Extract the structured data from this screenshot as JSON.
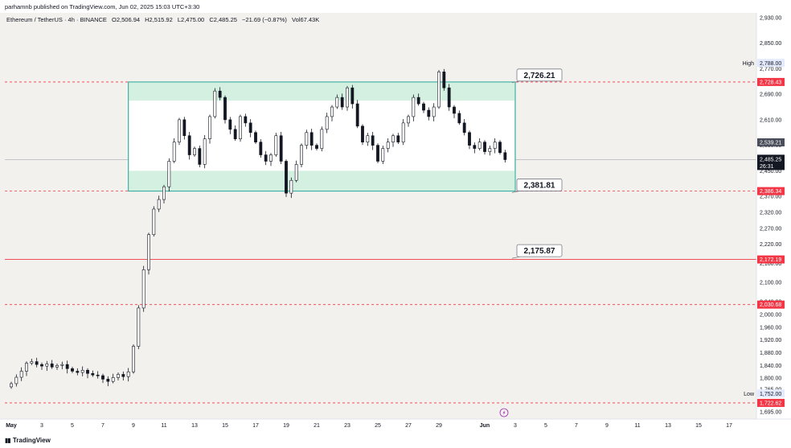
{
  "header": {
    "publisher_line": "parhamnb published on TradingView.com, Jun 02, 2025 15:03 UTC+3:30"
  },
  "legend": {
    "symbol": "Ethereum / TetherUS · 4h · BINANCE",
    "open": "O2,506.94",
    "high": "H2,515.92",
    "low": "L2,475.00",
    "close": "C2,485.25",
    "change": "−21.69 (−0.87%)",
    "volume": "Vol67.43K"
  },
  "footer": {
    "brand": "TradingView"
  },
  "colors": {
    "background": "#f3f1ed",
    "range_box_fill": "#d3f0e0",
    "range_box_border": "#26a69a",
    "dashed_red": "#f23645",
    "candle": "#131722",
    "current_price_tag": "#131722",
    "gray_tag": "#4a4e5a"
  },
  "chart_data": {
    "type": "candlestick",
    "symbol": "ETH/USDT",
    "timeframe": "4h",
    "ylim": [
      1672,
      2945
    ],
    "ytick_labels": [
      "2,930.00",
      "2,850.00",
      "2,770.00",
      "2,690.00",
      "2,610.00",
      "2,530.00",
      "2,450.00",
      "2,370.00",
      "2,320.00",
      "2,270.00",
      "2,220.00",
      "2,160.00",
      "2,100.00",
      "2,040.00",
      "2,000.00",
      "1,960.00",
      "1,920.00",
      "1,880.00",
      "1,840.00",
      "1,800.00",
      "1,765.00",
      "1,695.00"
    ],
    "ytick_values": [
      2930,
      2850,
      2770,
      2690,
      2610,
      2530,
      2450,
      2370,
      2320,
      2270,
      2220,
      2160,
      2100,
      2040,
      2000,
      1960,
      1920,
      1880,
      1840,
      1800,
      1765,
      1695
    ],
    "x_domain_days": [
      "May 1",
      "Jun 17"
    ],
    "xtick_labels": [
      "May",
      "3",
      "5",
      "7",
      "9",
      "11",
      "13",
      "15",
      "17",
      "19",
      "21",
      "23",
      "25",
      "27",
      "29",
      "Jun",
      "3",
      "5",
      "7",
      "9",
      "11",
      "13",
      "15",
      "17"
    ],
    "close_series": [
      [
        "May 1 00:00",
        1783
      ],
      [
        "May 1 08:00",
        1803
      ],
      [
        "May 1 16:00",
        1822
      ],
      [
        "May 2 00:00",
        1847
      ],
      [
        "May 2 08:00",
        1852
      ],
      [
        "May 2 16:00",
        1843
      ],
      [
        "May 3 00:00",
        1838
      ],
      [
        "May 3 08:00",
        1845
      ],
      [
        "May 3 16:00",
        1835
      ],
      [
        "May 4 00:00",
        1840
      ],
      [
        "May 4 08:00",
        1843
      ],
      [
        "May 4 16:00",
        1830
      ],
      [
        "May 5 00:00",
        1822
      ],
      [
        "May 5 08:00",
        1818
      ],
      [
        "May 5 16:00",
        1825
      ],
      [
        "May 6 00:00",
        1815
      ],
      [
        "May 6 08:00",
        1810
      ],
      [
        "May 6 16:00",
        1808
      ],
      [
        "May 7 00:00",
        1797
      ],
      [
        "May 7 08:00",
        1790
      ],
      [
        "May 7 16:00",
        1802
      ],
      [
        "May 8 00:00",
        1812
      ],
      [
        "May 8 08:00",
        1805
      ],
      [
        "May 8 16:00",
        1820
      ],
      [
        "May 9 00:00",
        1900
      ],
      [
        "May 9 08:00",
        2020
      ],
      [
        "May 9 16:00",
        2140
      ],
      [
        "May 10 00:00",
        2250
      ],
      [
        "May 10 08:00",
        2330
      ],
      [
        "May 10 16:00",
        2360
      ],
      [
        "May 11 00:00",
        2400
      ],
      [
        "May 11 08:00",
        2480
      ],
      [
        "May 11 16:00",
        2540
      ],
      [
        "May 12 00:00",
        2610
      ],
      [
        "May 12 08:00",
        2560
      ],
      [
        "May 12 16:00",
        2500
      ],
      [
        "May 13 00:00",
        2520
      ],
      [
        "May 13 08:00",
        2470
      ],
      [
        "May 13 16:00",
        2550
      ],
      [
        "May 14 00:00",
        2620
      ],
      [
        "May 14 08:00",
        2700
      ],
      [
        "May 14 16:00",
        2680
      ],
      [
        "May 15 00:00",
        2610
      ],
      [
        "May 15 08:00",
        2580
      ],
      [
        "May 15 16:00",
        2550
      ],
      [
        "May 16 00:00",
        2620
      ],
      [
        "May 16 08:00",
        2600
      ],
      [
        "May 16 16:00",
        2570
      ],
      [
        "May 17 00:00",
        2540
      ],
      [
        "May 17 08:00",
        2500
      ],
      [
        "May 17 16:00",
        2480
      ],
      [
        "May 18 00:00",
        2500
      ],
      [
        "May 18 08:00",
        2560
      ],
      [
        "May 18 16:00",
        2480
      ],
      [
        "May 19 00:00",
        2380
      ],
      [
        "May 19 08:00",
        2420
      ],
      [
        "May 19 16:00",
        2470
      ],
      [
        "May 20 00:00",
        2530
      ],
      [
        "May 20 08:00",
        2570
      ],
      [
        "May 20 16:00",
        2530
      ],
      [
        "May 21 00:00",
        2520
      ],
      [
        "May 21 08:00",
        2580
      ],
      [
        "May 21 16:00",
        2620
      ],
      [
        "May 22 00:00",
        2650
      ],
      [
        "May 22 08:00",
        2680
      ],
      [
        "May 22 16:00",
        2650
      ],
      [
        "May 23 00:00",
        2710
      ],
      [
        "May 23 08:00",
        2660
      ],
      [
        "May 23 16:00",
        2590
      ],
      [
        "May 24 00:00",
        2540
      ],
      [
        "May 24 08:00",
        2560
      ],
      [
        "May 24 16:00",
        2530
      ],
      [
        "May 25 00:00",
        2480
      ],
      [
        "May 25 08:00",
        2520
      ],
      [
        "May 25 16:00",
        2540
      ],
      [
        "May 26 00:00",
        2560
      ],
      [
        "May 26 08:00",
        2540
      ],
      [
        "May 26 16:00",
        2600
      ],
      [
        "May 27 00:00",
        2620
      ],
      [
        "May 27 08:00",
        2680
      ],
      [
        "May 27 16:00",
        2660
      ],
      [
        "May 28 00:00",
        2640
      ],
      [
        "May 28 08:00",
        2620
      ],
      [
        "May 28 16:00",
        2650
      ],
      [
        "May 29 00:00",
        2760
      ],
      [
        "May 29 08:00",
        2710
      ],
      [
        "May 29 16:00",
        2650
      ],
      [
        "May 30 00:00",
        2630
      ],
      [
        "May 30 08:00",
        2600
      ],
      [
        "May 30 16:00",
        2570
      ],
      [
        "May 31 00:00",
        2530
      ],
      [
        "May 31 08:00",
        2520
      ],
      [
        "May 31 16:00",
        2540
      ],
      [
        "Jun 1 00:00",
        2510
      ],
      [
        "Jun 1 08:00",
        2520
      ],
      [
        "Jun 1 16:00",
        2540
      ],
      [
        "Jun 2 00:00",
        2507
      ],
      [
        "Jun 2 08:00",
        2485
      ]
    ],
    "annotations": [
      {
        "label": "2,726.21",
        "price": 2726.21,
        "anchor_date": "May 8 16:00"
      },
      {
        "label": "2,381.81",
        "price": 2381.81,
        "anchor_date": "May 8 16:00"
      },
      {
        "label": "2,175.87",
        "price": 2175.87,
        "anchor_date": "May 8 16:00"
      }
    ],
    "range_box": {
      "start": "May 8 16:00",
      "end": "Jun 3 00:00",
      "top": 2728.43,
      "bottom": 2386.34,
      "inner_top": 2670,
      "inner_bottom": 2450
    },
    "horizontal_levels": [
      {
        "price": 2728.43,
        "label": "2,728.43",
        "style": "dashed",
        "color": "#f23645"
      },
      {
        "price": 2386.34,
        "label": "2,386.34",
        "style": "dashed",
        "color": "#f23645"
      },
      {
        "price": 2172.19,
        "label": "2,172.19",
        "style": "solid",
        "color": "#f23645"
      },
      {
        "price": 2030.68,
        "label": "2,030.68",
        "style": "dashed",
        "color": "#f23645"
      },
      {
        "price": 1722.62,
        "label": "1,722.62",
        "style": "dashed",
        "color": "#f23645"
      },
      {
        "price": 2485.25,
        "label": "2,485.25",
        "style": "solid",
        "color": "#b2b5be"
      }
    ],
    "price_tags": {
      "high_label": "High",
      "high_value": "2,788.00",
      "low_label": "Low",
      "low_value": "1,752.00",
      "last_price": "2,539.21",
      "current_price": "2,485.25",
      "countdown": "26:31"
    }
  }
}
